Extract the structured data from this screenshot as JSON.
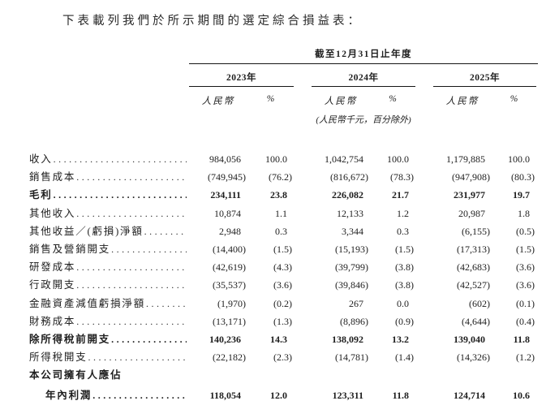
{
  "page": {
    "title": "下表載列我們於所示期間的選定綜合損益表："
  },
  "table": {
    "period_header": "截至12月31日止年度",
    "years": [
      "2023年",
      "2024年",
      "2025年"
    ],
    "subheaders": {
      "currency": "人民幣",
      "percent": "%"
    },
    "unit_note": "(人民幣千元，百分除外)",
    "rows": [
      {
        "label": "收入",
        "bold": false,
        "indent": false,
        "leaders": true,
        "values": [
          "984,056",
          "100.0",
          "1,042,754",
          "100.0",
          "1,179,885",
          "100.0"
        ]
      },
      {
        "label": "銷售成本",
        "bold": false,
        "indent": false,
        "leaders": true,
        "values": [
          "(749,945)",
          "(76.2)",
          "(816,672)",
          "(78.3)",
          "(947,908)",
          "(80.3)"
        ]
      },
      {
        "label": "毛利",
        "bold": true,
        "indent": false,
        "leaders": true,
        "values": [
          "234,111",
          "23.8",
          "226,082",
          "21.7",
          "231,977",
          "19.7"
        ]
      },
      {
        "label": "其他收入",
        "bold": false,
        "indent": false,
        "leaders": true,
        "values": [
          "10,874",
          "1.1",
          "12,133",
          "1.2",
          "20,987",
          "1.8"
        ]
      },
      {
        "label": "其他收益／(虧損)淨額",
        "bold": false,
        "indent": false,
        "leaders": true,
        "values": [
          "2,948",
          "0.3",
          "3,344",
          "0.3",
          "(6,155)",
          "(0.5)"
        ]
      },
      {
        "label": "銷售及營銷開支",
        "bold": false,
        "indent": false,
        "leaders": true,
        "values": [
          "(14,400)",
          "(1.5)",
          "(15,193)",
          "(1.5)",
          "(17,313)",
          "(1.5)"
        ]
      },
      {
        "label": "研發成本",
        "bold": false,
        "indent": false,
        "leaders": true,
        "values": [
          "(42,619)",
          "(4.3)",
          "(39,799)",
          "(3.8)",
          "(42,683)",
          "(3.6)"
        ]
      },
      {
        "label": "行政開支",
        "bold": false,
        "indent": false,
        "leaders": true,
        "values": [
          "(35,537)",
          "(3.6)",
          "(39,846)",
          "(3.8)",
          "(42,527)",
          "(3.6)"
        ]
      },
      {
        "label": "金融資產減值虧損淨額",
        "bold": false,
        "indent": false,
        "leaders": true,
        "values": [
          "(1,970)",
          "(0.2)",
          "267",
          "0.0",
          "(602)",
          "(0.1)"
        ]
      },
      {
        "label": "財務成本",
        "bold": false,
        "indent": false,
        "leaders": true,
        "values": [
          "(13,171)",
          "(1.3)",
          "(8,896)",
          "(0.9)",
          "(4,644)",
          "(0.4)"
        ]
      },
      {
        "label": "除所得稅前開支",
        "bold": true,
        "indent": false,
        "leaders": true,
        "values": [
          "140,236",
          "14.3",
          "138,092",
          "13.2",
          "139,040",
          "11.8"
        ]
      },
      {
        "label": "所得稅開支",
        "bold": false,
        "indent": false,
        "leaders": true,
        "values": [
          "(22,182)",
          "(2.3)",
          "(14,781)",
          "(1.4)",
          "(14,326)",
          "(1.2)"
        ]
      },
      {
        "label": "本公司擁有人應佔",
        "bold": true,
        "indent": false,
        "leaders": false,
        "values": []
      },
      {
        "label": "年內利潤",
        "bold": true,
        "indent": true,
        "leaders": true,
        "gap_above": true,
        "values": [
          "118,054",
          "12.0",
          "123,311",
          "11.8",
          "124,714",
          "10.6"
        ]
      }
    ]
  }
}
